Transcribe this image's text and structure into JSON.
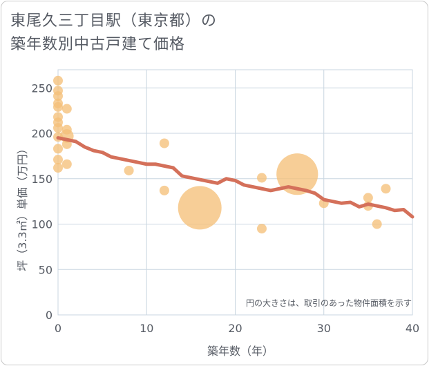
{
  "title_line1": "東尾久三丁目駅（東京都）の",
  "title_line2": "築年数別中古戸建て価格",
  "note": "円の大きさは、取引のあった物件面積を示す",
  "colors": {
    "bubble": "#f5c07a",
    "line": "#d4705a",
    "grid": "#c9d6e0",
    "axis": "#555a63"
  },
  "chart_data": {
    "type": "scatter",
    "title": "東尾久三丁目駅（東京都）の築年数別中古戸建て価格",
    "xlabel": "築年数（年）",
    "ylabel": "坪（3.3㎡）単価（万円）",
    "xlim": [
      0,
      40
    ],
    "ylim": [
      0,
      270
    ],
    "xticks": [
      "0",
      "10",
      "20",
      "30",
      "40"
    ],
    "yticks": [
      "0",
      "50",
      "100",
      "150",
      "200",
      "250"
    ],
    "xtick_values": [
      0,
      10,
      20,
      30,
      40
    ],
    "ytick_values": [
      0,
      50,
      100,
      150,
      200,
      250
    ],
    "scatter": [
      {
        "x": 0,
        "y": 258,
        "size": 1
      },
      {
        "x": 0,
        "y": 247,
        "size": 1
      },
      {
        "x": 0,
        "y": 241,
        "size": 1
      },
      {
        "x": 0,
        "y": 233,
        "size": 1
      },
      {
        "x": 0,
        "y": 229,
        "size": 1
      },
      {
        "x": 0,
        "y": 218,
        "size": 1
      },
      {
        "x": 0,
        "y": 212,
        "size": 1
      },
      {
        "x": 0,
        "y": 206,
        "size": 1
      },
      {
        "x": 0,
        "y": 196,
        "size": 1
      },
      {
        "x": 0,
        "y": 183,
        "size": 1
      },
      {
        "x": 0,
        "y": 171,
        "size": 1
      },
      {
        "x": 0,
        "y": 162,
        "size": 1
      },
      {
        "x": 1,
        "y": 227,
        "size": 1
      },
      {
        "x": 1,
        "y": 204,
        "size": 1
      },
      {
        "x": 1,
        "y": 197,
        "size": 1.4
      },
      {
        "x": 1,
        "y": 188,
        "size": 1
      },
      {
        "x": 1,
        "y": 166,
        "size": 1
      },
      {
        "x": 8,
        "y": 159,
        "size": 1
      },
      {
        "x": 12,
        "y": 189,
        "size": 1
      },
      {
        "x": 12,
        "y": 137,
        "size": 1
      },
      {
        "x": 16,
        "y": 118,
        "size": 4.5
      },
      {
        "x": 23,
        "y": 151,
        "size": 1
      },
      {
        "x": 23,
        "y": 95,
        "size": 1
      },
      {
        "x": 27,
        "y": 155,
        "size": 4.3
      },
      {
        "x": 30,
        "y": 123,
        "size": 1
      },
      {
        "x": 35,
        "y": 129,
        "size": 1
      },
      {
        "x": 35,
        "y": 120,
        "size": 1
      },
      {
        "x": 36,
        "y": 100,
        "size": 1
      },
      {
        "x": 37,
        "y": 139,
        "size": 1
      }
    ],
    "line": {
      "x": [
        0,
        1,
        2,
        3,
        4,
        5,
        6,
        7,
        8,
        9,
        10,
        11,
        12,
        13,
        14,
        15,
        16,
        17,
        18,
        19,
        20,
        21,
        22,
        23,
        24,
        25,
        26,
        27,
        28,
        29,
        30,
        31,
        32,
        33,
        34,
        35,
        36,
        37,
        38,
        39,
        40
      ],
      "y": [
        195,
        193,
        191,
        185,
        181,
        179,
        174,
        172,
        170,
        168,
        166,
        166,
        164,
        162,
        153,
        151,
        149,
        147,
        145,
        150,
        148,
        143,
        141,
        139,
        137,
        139,
        141,
        139,
        137,
        134,
        127,
        125,
        123,
        124,
        119,
        122,
        120,
        118,
        115,
        116,
        108
      ]
    }
  }
}
